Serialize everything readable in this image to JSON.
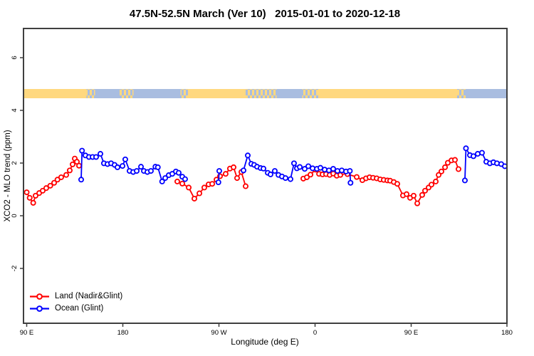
{
  "chart_data": {
    "type": "line",
    "title": "47.5N-52.5N March (Ver 10)   2015-01-01 to 2020-12-18",
    "xlabel": "Longitude (deg E)",
    "ylabel": "XCO2 - MLO trend (ppm)",
    "legend_position": "bottom-left",
    "colors": {
      "axis": "#3f3f3f",
      "tick_text": "#000000"
    },
    "x_axis": {
      "unit": "deg E (wrapping, 90E to 180 across 450 deg)",
      "ticks": [
        {
          "deg": 90,
          "label": "90 E"
        },
        {
          "deg": 180,
          "label": "180"
        },
        {
          "deg": 270,
          "label": "90 W"
        },
        {
          "deg": 360,
          "label": "0"
        },
        {
          "deg": 450,
          "label": "90 E"
        },
        {
          "deg": 540,
          "label": "180"
        }
      ],
      "range_deg": [
        87,
        539
      ]
    },
    "y_axis": {
      "ticks": [
        {
          "v": -2,
          "label": "-2"
        },
        {
          "v": 0,
          "label": "0"
        },
        {
          "v": 2,
          "label": "2"
        },
        {
          "v": 4,
          "label": "4"
        },
        {
          "v": 6,
          "label": "6"
        }
      ],
      "range": [
        -4.1,
        7.1
      ]
    },
    "coverage_strip": {
      "land_color": "#FFD87F",
      "ocean_color": "#A9BDE0",
      "value_range_ppm": [
        4.45,
        4.8
      ],
      "segments": [
        {
          "from": 87,
          "to": 146,
          "type": "land"
        },
        {
          "from": 146,
          "to": 154,
          "type": "mixed"
        },
        {
          "from": 154,
          "to": 177,
          "type": "ocean"
        },
        {
          "from": 177,
          "to": 190,
          "type": "mixed"
        },
        {
          "from": 190,
          "to": 234,
          "type": "ocean"
        },
        {
          "from": 234,
          "to": 241,
          "type": "mixed"
        },
        {
          "from": 241,
          "to": 295,
          "type": "land"
        },
        {
          "from": 295,
          "to": 324,
          "type": "mixed"
        },
        {
          "from": 324,
          "to": 348,
          "type": "ocean"
        },
        {
          "from": 348,
          "to": 363,
          "type": "mixed"
        },
        {
          "from": 363,
          "to": 493,
          "type": "land"
        },
        {
          "from": 493,
          "to": 501,
          "type": "mixed"
        },
        {
          "from": 501,
          "to": 539,
          "type": "ocean"
        }
      ]
    },
    "series": [
      {
        "id": "land",
        "name": "Land (Nadir&Glint)",
        "color": "#FF0000",
        "segments": [
          [
            [
              90,
              0.89
            ],
            [
              92.8,
              0.68
            ],
            [
              96.1,
              0.49
            ],
            [
              98.3,
              0.76
            ],
            [
              101.7,
              0.86
            ],
            [
              105,
              0.95
            ],
            [
              108.3,
              1.05
            ],
            [
              112.1,
              1.14
            ],
            [
              115.7,
              1.25
            ],
            [
              118.8,
              1.37
            ],
            [
              122.3,
              1.46
            ],
            [
              127,
              1.55
            ],
            [
              130.3,
              1.72
            ],
            [
              133,
              1.95
            ],
            [
              135,
              2.17
            ],
            [
              137,
              2.05
            ],
            [
              139,
              1.9
            ]
          ],
          [
            [
              231,
              1.3
            ],
            [
              235.7,
              1.22
            ],
            [
              241.7,
              1.07
            ],
            [
              247,
              0.65
            ],
            [
              251.7,
              0.85
            ],
            [
              256.3,
              1.07
            ],
            [
              260.3,
              1.19
            ],
            [
              263.7,
              1.21
            ],
            [
              267.7,
              1.37
            ],
            [
              271,
              1.5
            ],
            [
              276.3,
              1.59
            ],
            [
              280.3,
              1.79
            ],
            [
              283.7,
              1.84
            ],
            [
              287,
              1.43
            ],
            [
              291,
              1.66
            ],
            [
              295,
              1.12
            ]
          ],
          [
            [
              349,
              1.41
            ],
            [
              352.3,
              1.46
            ],
            [
              355.7,
              1.56
            ],
            [
              360.3,
              1.75
            ],
            [
              363.7,
              1.59
            ],
            [
              367,
              1.57
            ],
            [
              370.3,
              1.58
            ],
            [
              373.7,
              1.55
            ],
            [
              377,
              1.6
            ],
            [
              380.3,
              1.52
            ],
            [
              383.7,
              1.55
            ],
            [
              386.3,
              1.66
            ],
            [
              390.3,
              1.58
            ],
            [
              399,
              1.47
            ],
            [
              404.3,
              1.35
            ],
            [
              407.7,
              1.42
            ],
            [
              411,
              1.46
            ],
            [
              414.3,
              1.44
            ],
            [
              417.7,
              1.42
            ],
            [
              421,
              1.38
            ],
            [
              424.3,
              1.36
            ],
            [
              427.7,
              1.34
            ],
            [
              430.3,
              1.33
            ],
            [
              433.7,
              1.28
            ],
            [
              437,
              1.21
            ],
            [
              442.3,
              0.77
            ],
            [
              445.7,
              0.82
            ],
            [
              449,
              0.68
            ],
            [
              452.3,
              0.76
            ],
            [
              455.7,
              0.47
            ],
            [
              460.3,
              0.79
            ],
            [
              463,
              0.95
            ],
            [
              466.3,
              1.07
            ],
            [
              469,
              1.18
            ],
            [
              473,
              1.3
            ],
            [
              475.7,
              1.55
            ],
            [
              478.3,
              1.68
            ],
            [
              481.7,
              1.84
            ],
            [
              484.3,
              2.01
            ],
            [
              487.7,
              2.1
            ],
            [
              491,
              2.12
            ],
            [
              494.3,
              1.77
            ]
          ]
        ]
      },
      {
        "id": "ocean",
        "name": "Ocean (Glint)",
        "color": "#0000FF",
        "segments": [
          [
            [
              141,
              1.37
            ],
            [
              141.8,
              2.47
            ],
            [
              145,
              2.29
            ],
            [
              148.3,
              2.23
            ],
            [
              151.7,
              2.23
            ],
            [
              155,
              2.23
            ],
            [
              159,
              2.35
            ],
            [
              162.3,
              1.99
            ],
            [
              165.7,
              1.96
            ],
            [
              169,
              1.99
            ],
            [
              172.3,
              1.93
            ],
            [
              175,
              1.84
            ],
            [
              179.7,
              1.89
            ],
            [
              182.3,
              2.14
            ],
            [
              186.3,
              1.7
            ],
            [
              189.7,
              1.66
            ],
            [
              193,
              1.7
            ],
            [
              197,
              1.86
            ],
            [
              199.7,
              1.7
            ],
            [
              203,
              1.66
            ],
            [
              206.3,
              1.7
            ],
            [
              210.5,
              1.86
            ],
            [
              212.8,
              1.84
            ],
            [
              216.8,
              1.3
            ],
            [
              219.7,
              1.43
            ],
            [
              223,
              1.54
            ],
            [
              226.3,
              1.59
            ],
            [
              229.7,
              1.68
            ],
            [
              232.3,
              1.63
            ],
            [
              235.7,
              1.48
            ],
            [
              238.3,
              1.39
            ]
          ],
          [
            [
              269.5,
              1.27
            ],
            [
              270.3,
              1.7
            ]
          ],
          [
            [
              293,
              1.72
            ],
            [
              297,
              2.29
            ],
            [
              300.3,
              1.97
            ],
            [
              303,
              1.93
            ],
            [
              305.7,
              1.86
            ],
            [
              309,
              1.81
            ],
            [
              311.7,
              1.79
            ],
            [
              315.7,
              1.63
            ],
            [
              318.3,
              1.57
            ],
            [
              322.3,
              1.7
            ],
            [
              325.7,
              1.55
            ],
            [
              329,
              1.49
            ],
            [
              332.3,
              1.43
            ],
            [
              337,
              1.39
            ],
            [
              340.3,
              1.99
            ],
            [
              343,
              1.8
            ],
            [
              345.7,
              1.85
            ],
            [
              350.3,
              1.78
            ],
            [
              353.7,
              1.88
            ],
            [
              357.7,
              1.8
            ],
            [
              361.7,
              1.78
            ],
            [
              365,
              1.82
            ],
            [
              369,
              1.75
            ],
            [
              373,
              1.72
            ],
            [
              377,
              1.78
            ],
            [
              381,
              1.7
            ],
            [
              385,
              1.72
            ],
            [
              389,
              1.68
            ],
            [
              392.6,
              1.7
            ],
            [
              393.2,
              1.25
            ]
          ],
          [
            [
              500.3,
              1.34
            ],
            [
              501.3,
              2.56
            ],
            [
              505,
              2.3
            ],
            [
              508.3,
              2.26
            ],
            [
              512.3,
              2.35
            ],
            [
              516.3,
              2.39
            ],
            [
              520.3,
              2.05
            ],
            [
              523.7,
              1.99
            ],
            [
              527,
              2.03
            ],
            [
              530.3,
              1.99
            ],
            [
              534.3,
              1.96
            ],
            [
              537.7,
              1.88
            ]
          ]
        ]
      }
    ]
  }
}
